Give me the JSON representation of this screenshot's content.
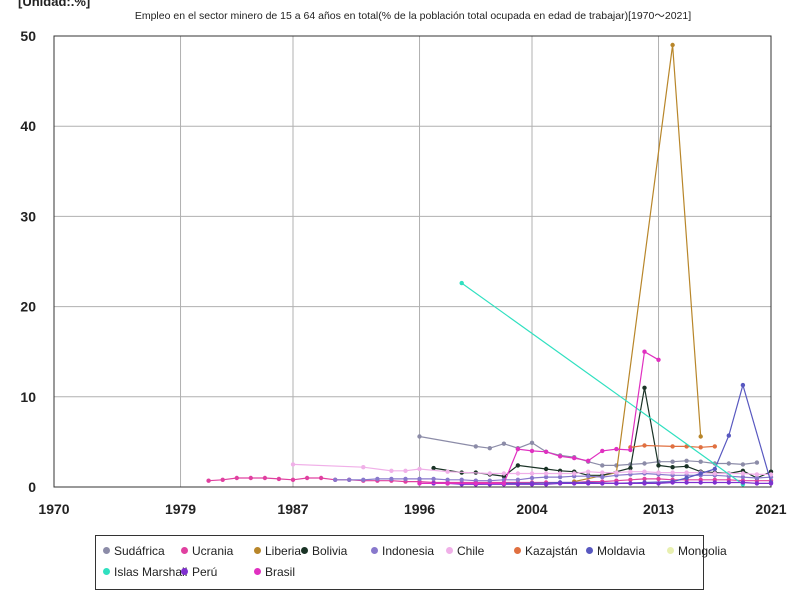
{
  "chart_data": {
    "type": "line",
    "unit_label": "[Unidad:.%]",
    "title": "Empleo en el sector minero de 15 a 64 años en total(% de la población total ocupada en edad de trabajar)[1970～2021]",
    "xlim": [
      1970,
      2021
    ],
    "ylim": [
      0,
      50
    ],
    "x_ticks": [
      "1970",
      "1979",
      "1987",
      "1996",
      "2004",
      "2013",
      "2021"
    ],
    "y_ticks": [
      "0",
      "10",
      "20",
      "30",
      "40",
      "50"
    ],
    "grid": true,
    "legend_position": "bottom",
    "series": [
      {
        "name": "Sudáfrica",
        "color": "#8c8ca8",
        "points": [
          [
            1996,
            5.6
          ],
          [
            2000,
            4.5
          ],
          [
            2001,
            4.3
          ],
          [
            2002,
            4.8
          ],
          [
            2003,
            4.3
          ],
          [
            2004,
            4.9
          ],
          [
            2005,
            3.9
          ],
          [
            2006,
            3.5
          ],
          [
            2007,
            3.3
          ],
          [
            2008,
            2.8
          ],
          [
            2009,
            2.4
          ],
          [
            2010,
            2.4
          ],
          [
            2011,
            2.5
          ],
          [
            2012,
            2.6
          ],
          [
            2013,
            2.8
          ],
          [
            2014,
            2.8
          ],
          [
            2015,
            2.9
          ],
          [
            2016,
            2.8
          ],
          [
            2017,
            2.6
          ],
          [
            2018,
            2.6
          ],
          [
            2019,
            2.5
          ],
          [
            2020,
            2.7
          ]
        ]
      },
      {
        "name": "Ucrania",
        "color": "#e040a0",
        "points": [
          [
            1981,
            0.7
          ],
          [
            1982,
            0.8
          ],
          [
            1983,
            1.0
          ],
          [
            1984,
            1.0
          ],
          [
            1985,
            1.0
          ],
          [
            1986,
            0.9
          ],
          [
            1987,
            0.8
          ],
          [
            1988,
            1.0
          ],
          [
            1989,
            1.0
          ],
          [
            1990,
            0.8
          ],
          [
            1991,
            0.8
          ],
          [
            1992,
            0.7
          ],
          [
            1993,
            0.7
          ],
          [
            1994,
            0.7
          ],
          [
            1995,
            0.6
          ],
          [
            1996,
            0.6
          ],
          [
            1997,
            0.5
          ],
          [
            1998,
            0.5
          ],
          [
            1999,
            0.5
          ],
          [
            2000,
            0.5
          ],
          [
            2001,
            0.5
          ],
          [
            2002,
            0.5
          ],
          [
            2003,
            0.5
          ],
          [
            2004,
            0.5
          ],
          [
            2005,
            0.5
          ],
          [
            2006,
            0.5
          ],
          [
            2007,
            0.5
          ],
          [
            2008,
            0.6
          ],
          [
            2009,
            0.6
          ],
          [
            2010,
            0.7
          ],
          [
            2011,
            0.8
          ],
          [
            2012,
            0.9
          ],
          [
            2013,
            0.9
          ],
          [
            2014,
            0.8
          ],
          [
            2015,
            0.8
          ],
          [
            2016,
            0.8
          ],
          [
            2017,
            0.8
          ],
          [
            2018,
            0.8
          ],
          [
            2019,
            0.7
          ],
          [
            2020,
            0.7
          ],
          [
            2021,
            0.7
          ]
        ]
      },
      {
        "name": "Liberia",
        "color": "#b8862a",
        "points": [
          [
            2007,
            0.6
          ],
          [
            2010,
            1.6
          ],
          [
            2014,
            49
          ],
          [
            2016,
            5.6
          ]
        ]
      },
      {
        "name": "Bolivia",
        "color": "#1a3326",
        "points": [
          [
            1997,
            2.1
          ],
          [
            1999,
            1.6
          ],
          [
            2000,
            1.6
          ],
          [
            2001,
            1.4
          ],
          [
            2002,
            1.2
          ],
          [
            2003,
            2.4
          ],
          [
            2005,
            2.0
          ],
          [
            2006,
            1.8
          ],
          [
            2007,
            1.7
          ],
          [
            2008,
            1.3
          ],
          [
            2009,
            1.3
          ],
          [
            2011,
            2.1
          ],
          [
            2012,
            11.0
          ],
          [
            2013,
            2.4
          ],
          [
            2014,
            2.2
          ],
          [
            2015,
            2.3
          ],
          [
            2016,
            1.7
          ],
          [
            2017,
            1.6
          ],
          [
            2018,
            1.5
          ],
          [
            2019,
            1.8
          ],
          [
            2020,
            1.0
          ],
          [
            2021,
            1.7
          ]
        ]
      },
      {
        "name": "Indonesia",
        "color": "#8878cc",
        "points": [
          [
            1990,
            0.8
          ],
          [
            1991,
            0.8
          ],
          [
            1992,
            0.8
          ],
          [
            1993,
            0.9
          ],
          [
            1994,
            0.9
          ],
          [
            1995,
            0.9
          ],
          [
            1996,
            0.9
          ],
          [
            1997,
            0.9
          ],
          [
            1998,
            0.8
          ],
          [
            1999,
            0.8
          ],
          [
            2000,
            0.7
          ],
          [
            2001,
            0.7
          ],
          [
            2002,
            0.8
          ],
          [
            2003,
            0.8
          ],
          [
            2004,
            1.0
          ],
          [
            2005,
            1.1
          ],
          [
            2006,
            1.1
          ],
          [
            2007,
            1.2
          ],
          [
            2008,
            1.2
          ],
          [
            2009,
            1.1
          ],
          [
            2010,
            1.3
          ],
          [
            2011,
            1.4
          ],
          [
            2012,
            1.5
          ],
          [
            2013,
            1.4
          ],
          [
            2014,
            1.3
          ],
          [
            2015,
            1.3
          ],
          [
            2016,
            1.3
          ],
          [
            2017,
            1.3
          ],
          [
            2018,
            1.2
          ],
          [
            2019,
            1.1
          ],
          [
            2020,
            1.0
          ],
          [
            2021,
            1.1
          ]
        ]
      },
      {
        "name": "Chile",
        "color": "#f0b0e8",
        "points": [
          [
            1987,
            2.5
          ],
          [
            1992,
            2.2
          ],
          [
            1994,
            1.8
          ],
          [
            1995,
            1.8
          ],
          [
            1996,
            2.0
          ],
          [
            1998,
            1.7
          ],
          [
            2001,
            1.5
          ],
          [
            2002,
            1.5
          ],
          [
            2003,
            1.5
          ],
          [
            2004,
            1.5
          ],
          [
            2005,
            1.5
          ],
          [
            2006,
            1.5
          ],
          [
            2007,
            1.5
          ],
          [
            2008,
            1.7
          ],
          [
            2009,
            1.6
          ],
          [
            2010,
            1.6
          ],
          [
            2011,
            1.7
          ],
          [
            2012,
            1.7
          ],
          [
            2013,
            1.6
          ],
          [
            2014,
            1.6
          ],
          [
            2015,
            1.6
          ],
          [
            2016,
            1.6
          ],
          [
            2017,
            1.5
          ],
          [
            2018,
            1.5
          ],
          [
            2019,
            1.5
          ],
          [
            2020,
            1.4
          ],
          [
            2021,
            1.4
          ]
        ]
      },
      {
        "name": "Kazajstán",
        "color": "#e07040",
        "points": [
          [
            2011,
            4.4
          ],
          [
            2012,
            4.6
          ],
          [
            2014,
            4.5
          ],
          [
            2015,
            4.5
          ],
          [
            2016,
            4.4
          ],
          [
            2017,
            4.5
          ]
        ]
      },
      {
        "name": "Moldavia",
        "color": "#5858c0",
        "points": [
          [
            2000,
            0.3
          ],
          [
            2002,
            0.4
          ],
          [
            2004,
            0.4
          ],
          [
            2006,
            0.5
          ],
          [
            2008,
            0.5
          ],
          [
            2010,
            0.4
          ],
          [
            2012,
            0.5
          ],
          [
            2014,
            0.6
          ],
          [
            2015,
            1.0
          ],
          [
            2016,
            1.5
          ],
          [
            2017,
            2.0
          ],
          [
            2018,
            5.7
          ],
          [
            2019,
            11.3
          ],
          [
            2021,
            0.5
          ]
        ]
      },
      {
        "name": "Mongolia",
        "color": "#e8f0b0",
        "points": []
      },
      {
        "name": "Islas Marshall",
        "color": "#30e0c0",
        "points": [
          [
            1999,
            22.6
          ],
          [
            2019,
            0.3
          ]
        ]
      },
      {
        "name": "Perú",
        "color": "#8030d0",
        "points": [
          [
            1997,
            0.4
          ],
          [
            1998,
            0.4
          ],
          [
            1999,
            0.3
          ],
          [
            2000,
            0.3
          ],
          [
            2001,
            0.3
          ],
          [
            2002,
            0.3
          ],
          [
            2003,
            0.3
          ],
          [
            2004,
            0.3
          ],
          [
            2005,
            0.3
          ],
          [
            2006,
            0.4
          ],
          [
            2007,
            0.4
          ],
          [
            2008,
            0.4
          ],
          [
            2009,
            0.4
          ],
          [
            2010,
            0.4
          ],
          [
            2011,
            0.4
          ],
          [
            2012,
            0.4
          ],
          [
            2013,
            0.4
          ],
          [
            2014,
            0.5
          ],
          [
            2015,
            0.5
          ],
          [
            2016,
            0.5
          ],
          [
            2017,
            0.5
          ],
          [
            2018,
            0.5
          ],
          [
            2019,
            0.5
          ],
          [
            2020,
            0.4
          ],
          [
            2021,
            0.4
          ]
        ]
      },
      {
        "name": "Brasil",
        "color": "#e030c0",
        "points": [
          [
            1996,
            0.4
          ],
          [
            1998,
            0.4
          ],
          [
            2000,
            0.4
          ],
          [
            2002,
            0.4
          ],
          [
            2003,
            4.2
          ],
          [
            2004,
            4.0
          ],
          [
            2005,
            3.9
          ],
          [
            2006,
            3.4
          ],
          [
            2007,
            3.2
          ],
          [
            2008,
            2.9
          ],
          [
            2009,
            4.0
          ],
          [
            2010,
            4.2
          ],
          [
            2011,
            4.1
          ],
          [
            2012,
            15.0
          ],
          [
            2013,
            14.1
          ]
        ]
      }
    ]
  }
}
